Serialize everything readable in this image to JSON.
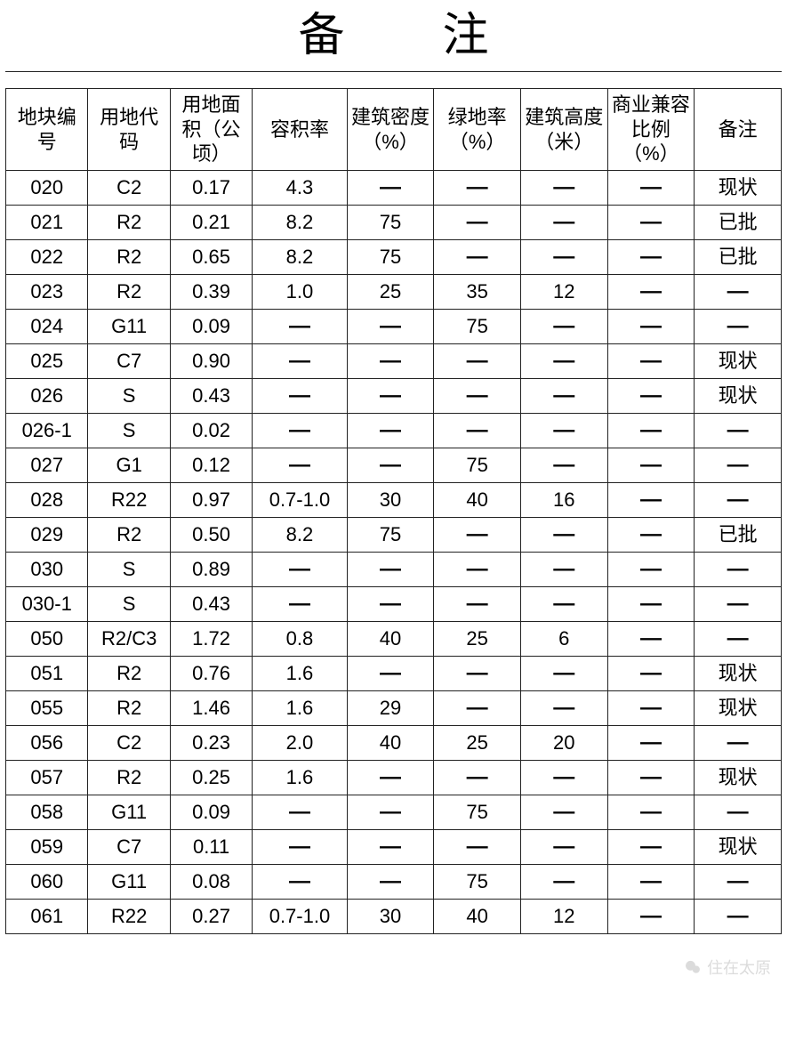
{
  "page": {
    "title": "备注",
    "background_color": "#ffffff",
    "border_color": "#222222",
    "text_color": "#000000",
    "title_fontsize": 52,
    "header_fontsize": 22,
    "cell_fontsize": 22,
    "dash_glyph": "—"
  },
  "watermark": {
    "text": "住在太原",
    "icon": "wechat-icon",
    "color": "#bfbfbf"
  },
  "table": {
    "type": "table",
    "columns": [
      {
        "key": "c0",
        "label": "地块编号",
        "width_pct": 10.6,
        "align": "center"
      },
      {
        "key": "c1",
        "label": "用地代码",
        "width_pct": 10.6,
        "align": "center"
      },
      {
        "key": "c2",
        "label": "用地面积（公顷）",
        "width_pct": 10.6,
        "align": "center"
      },
      {
        "key": "c3",
        "label": "容积率",
        "width_pct": 12.2,
        "align": "center"
      },
      {
        "key": "c4",
        "label": "建筑密度（%）",
        "width_pct": 11.2,
        "align": "center"
      },
      {
        "key": "c5",
        "label": "绿地率（%）",
        "width_pct": 11.2,
        "align": "center"
      },
      {
        "key": "c6",
        "label": "建筑高度（米）",
        "width_pct": 11.2,
        "align": "center"
      },
      {
        "key": "c7",
        "label": "商业兼容比例（%）",
        "width_pct": 11.2,
        "align": "center"
      },
      {
        "key": "c8",
        "label": "备注",
        "width_pct": 11.2,
        "align": "center"
      }
    ],
    "rows": [
      [
        "020",
        "C2",
        "0.17",
        "4.3",
        "—",
        "—",
        "—",
        "—",
        "现状"
      ],
      [
        "021",
        "R2",
        "0.21",
        "8.2",
        "75",
        "—",
        "—",
        "—",
        "已批"
      ],
      [
        "022",
        "R2",
        "0.65",
        "8.2",
        "75",
        "—",
        "—",
        "—",
        "已批"
      ],
      [
        "023",
        "R2",
        "0.39",
        "1.0",
        "25",
        "35",
        "12",
        "—",
        "—"
      ],
      [
        "024",
        "G11",
        "0.09",
        "—",
        "—",
        "75",
        "—",
        "—",
        "—"
      ],
      [
        "025",
        "C7",
        "0.90",
        "—",
        "—",
        "—",
        "—",
        "—",
        "现状"
      ],
      [
        "026",
        "S",
        "0.43",
        "—",
        "—",
        "—",
        "—",
        "—",
        "现状"
      ],
      [
        "026-1",
        "S",
        "0.02",
        "—",
        "—",
        "—",
        "—",
        "—",
        "—"
      ],
      [
        "027",
        "G1",
        "0.12",
        "—",
        "—",
        "75",
        "—",
        "—",
        "—"
      ],
      [
        "028",
        "R22",
        "0.97",
        "0.7-1.0",
        "30",
        "40",
        "16",
        "—",
        "—"
      ],
      [
        "029",
        "R2",
        "0.50",
        "8.2",
        "75",
        "—",
        "—",
        "—",
        "已批"
      ],
      [
        "030",
        "S",
        "0.89",
        "—",
        "—",
        "—",
        "—",
        "—",
        "—"
      ],
      [
        "030-1",
        "S",
        "0.43",
        "—",
        "—",
        "—",
        "—",
        "—",
        "—"
      ],
      [
        "050",
        "R2/C3",
        "1.72",
        "0.8",
        "40",
        "25",
        "6",
        "—",
        "—"
      ],
      [
        "051",
        "R2",
        "0.76",
        "1.6",
        "—",
        "—",
        "—",
        "—",
        "现状"
      ],
      [
        "055",
        "R2",
        "1.46",
        "1.6",
        "29",
        "—",
        "—",
        "—",
        "现状"
      ],
      [
        "056",
        "C2",
        "0.23",
        "2.0",
        "40",
        "25",
        "20",
        "—",
        "—"
      ],
      [
        "057",
        "R2",
        "0.25",
        "1.6",
        "—",
        "—",
        "—",
        "—",
        "现状"
      ],
      [
        "058",
        "G11",
        "0.09",
        "—",
        "—",
        "75",
        "—",
        "—",
        "—"
      ],
      [
        "059",
        "C7",
        "0.11",
        "—",
        "—",
        "—",
        "—",
        "—",
        "现状"
      ],
      [
        "060",
        "G11",
        "0.08",
        "—",
        "—",
        "75",
        "—",
        "—",
        "—"
      ],
      [
        "061",
        "R22",
        "0.27",
        "0.7-1.0",
        "30",
        "40",
        "12",
        "—",
        "—"
      ]
    ]
  }
}
